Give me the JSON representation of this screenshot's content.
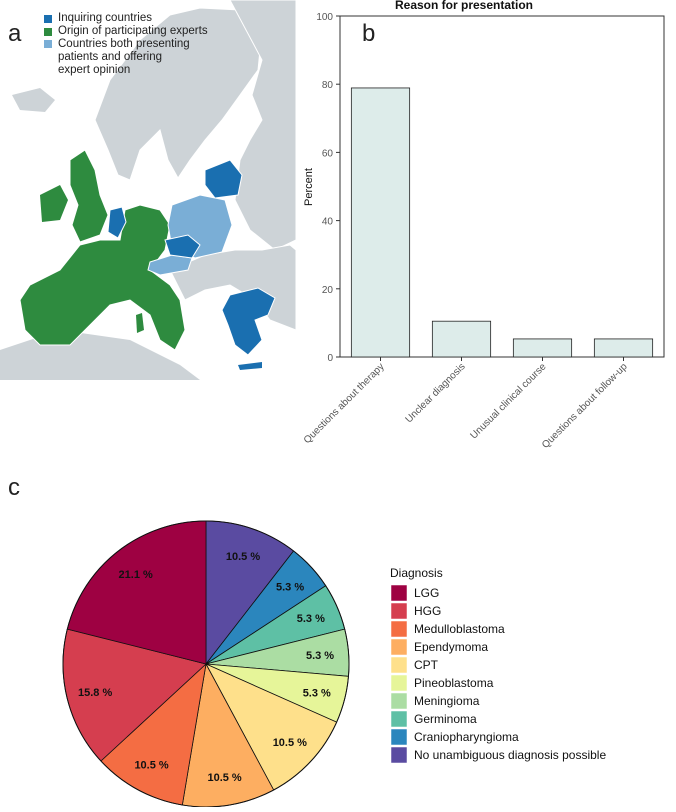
{
  "panels": {
    "a": "a",
    "b": "b",
    "c": "c"
  },
  "map": {
    "legend": [
      {
        "label": "Inquiring countries",
        "color": "#1a6fb0"
      },
      {
        "label": "Origin of participating experts",
        "color": "#2e8b3f"
      },
      {
        "label_lines": [
          "Countries both presenting",
          "patients and offering",
          "expert opinion"
        ],
        "color": "#7aaed6"
      }
    ],
    "colors": {
      "sea": "#ffffff",
      "land": "#cdd3d7",
      "border": "#ffffff"
    }
  },
  "chart_data": [
    {
      "type": "bar",
      "title": "Reason for presentation",
      "ylabel": "Percent",
      "xlabel": "",
      "ylim": [
        0,
        100
      ],
      "yticks": [
        0,
        20,
        40,
        60,
        80,
        100
      ],
      "categories": [
        "Questions about therapy",
        "Unclear diagnosis",
        "Unusual clinical course",
        "Questions about follow-up"
      ],
      "values": [
        78.9,
        10.5,
        5.3,
        5.3
      ],
      "bar_color": "#ddecea",
      "grid": false
    },
    {
      "type": "pie",
      "legend_title": "Diagnosis",
      "legend_position": "right",
      "slices": [
        {
          "label": "No unambiguous diagnosis possible",
          "value": 10.5,
          "text": "10.5 %",
          "color": "#5a4ba1"
        },
        {
          "label": "Craniopharyngioma",
          "value": 5.3,
          "text": "5.3 %",
          "color": "#2b86bd"
        },
        {
          "label": "Germinoma",
          "value": 5.3,
          "text": "5.3 %",
          "color": "#5ec0a5"
        },
        {
          "label": "Meningioma",
          "value": 5.3,
          "text": "5.3 %",
          "color": "#abdda3"
        },
        {
          "label": "Pineoblastoma",
          "value": 5.3,
          "text": "5.3 %",
          "color": "#e6f599"
        },
        {
          "label": "CPT",
          "value": 10.5,
          "text": "10.5 %",
          "color": "#fee08b"
        },
        {
          "label": "Ependymoma",
          "value": 10.5,
          "text": "10.5 %",
          "color": "#fdae61"
        },
        {
          "label": "Medulloblastoma",
          "value": 10.5,
          "text": "10.5 %",
          "color": "#f46d43"
        },
        {
          "label": "HGG",
          "value": 15.8,
          "text": "15.8 %",
          "color": "#d53e4f"
        },
        {
          "label": "LGG",
          "value": 21.1,
          "text": "21.1 %",
          "color": "#9e0142"
        }
      ],
      "legend_order": [
        "LGG",
        "HGG",
        "Medulloblastoma",
        "Ependymoma",
        "CPT",
        "Pineoblastoma",
        "Meningioma",
        "Germinoma",
        "Craniopharyngioma",
        "No unambiguous diagnosis possible"
      ]
    }
  ]
}
